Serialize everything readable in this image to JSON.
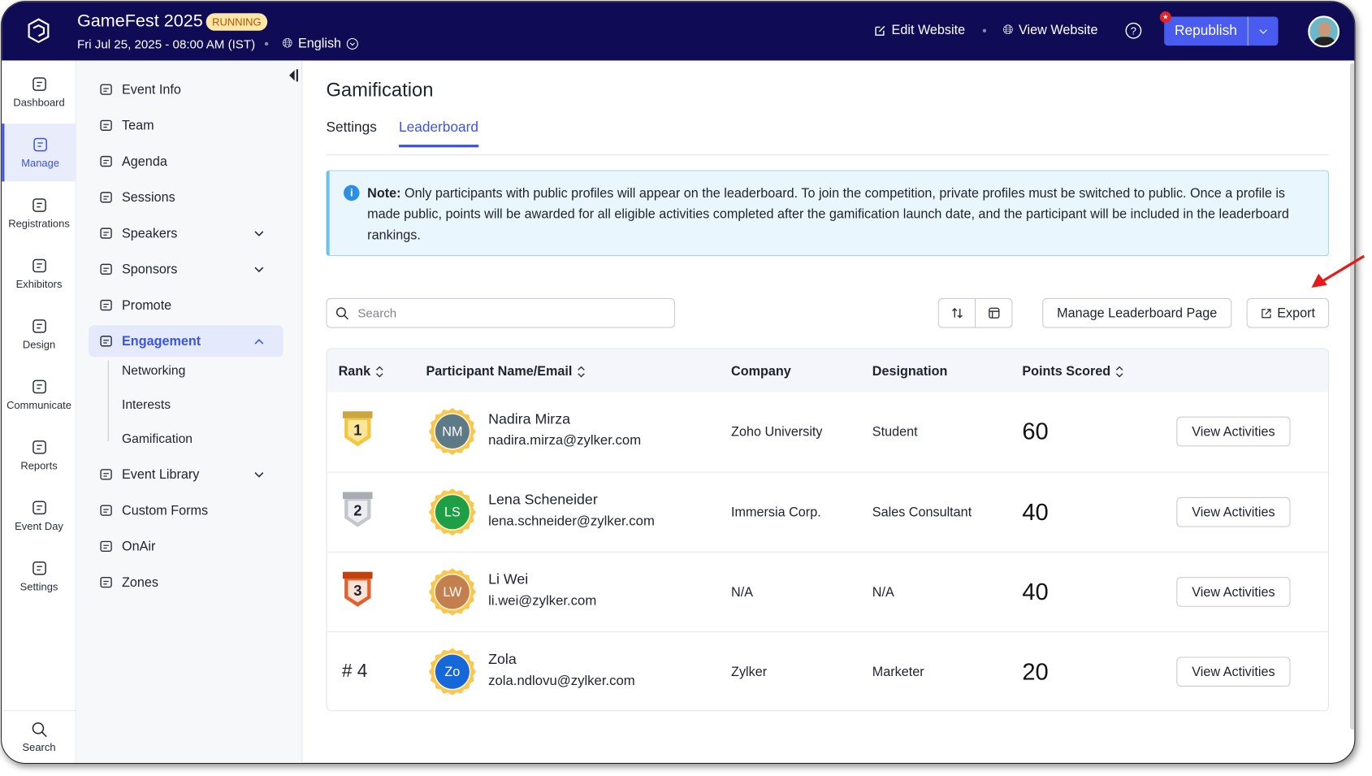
{
  "header": {
    "event_title": "GameFest 2025",
    "status_badge": "RUNNING",
    "datetime": "Fri Jul 25, 2025 - 08:00 AM (IST)",
    "language": "English",
    "edit_website": "Edit Website",
    "view_website": "View Website",
    "republish": "Republish"
  },
  "rail": [
    {
      "label": "Dashboard",
      "icon": "dashboard-icon"
    },
    {
      "label": "Manage",
      "icon": "calendar-gear-icon",
      "active": true
    },
    {
      "label": "Registrations",
      "icon": "clipboard-icon"
    },
    {
      "label": "Exhibitors",
      "icon": "booth-icon"
    },
    {
      "label": "Design",
      "icon": "design-icon"
    },
    {
      "label": "Communicate",
      "icon": "mail-icon"
    },
    {
      "label": "Reports",
      "icon": "pie-chart-icon"
    },
    {
      "label": "Event Day",
      "icon": "calendar-check-icon"
    },
    {
      "label": "Settings",
      "icon": "gear-icon"
    }
  ],
  "rail_search": "Search",
  "sidebar": {
    "items": [
      {
        "label": "Event Info"
      },
      {
        "label": "Team"
      },
      {
        "label": "Agenda"
      },
      {
        "label": "Sessions"
      },
      {
        "label": "Speakers",
        "expandable": true
      },
      {
        "label": "Sponsors",
        "expandable": true
      },
      {
        "label": "Promote"
      },
      {
        "label": "Engagement",
        "expandable": true,
        "active": true
      }
    ],
    "sub_items": [
      "Networking",
      "Interests",
      "Gamification"
    ],
    "items_after": [
      {
        "label": "Event Library",
        "expandable": true
      },
      {
        "label": "Custom Forms"
      },
      {
        "label": "OnAir"
      },
      {
        "label": "Zones"
      }
    ]
  },
  "main": {
    "title": "Gamification",
    "tabs": [
      {
        "label": "Settings"
      },
      {
        "label": "Leaderboard",
        "active": true
      }
    ],
    "note_label": "Note:",
    "note_text": " Only participants with public profiles will appear on the leaderboard. To join the competition, private profiles must be switched to public. Once a profile is made public, points will be awarded for all eligible activities completed after the gamification launch date, and the participant will be included in the leaderboard rankings.",
    "search_placeholder": "Search",
    "manage_button": "Manage Leaderboard Page",
    "export_button": "Export"
  },
  "table": {
    "columns": [
      "Rank",
      "Participant Name/Email",
      "Company",
      "Designation",
      "Points Scored"
    ],
    "action_label": "View Activities",
    "rows": [
      {
        "rank": "1",
        "initials": "NM",
        "avatar_color": "#5f7a87",
        "name": "Nadira Mirza",
        "email": "nadira.mirza@zylker.com",
        "company": "Zoho University",
        "designation": "Student",
        "points": "60"
      },
      {
        "rank": "2",
        "initials": "LS",
        "avatar_color": "#1e9e45",
        "name": "Lena Scheneider",
        "email": "lena.schneider@zylker.com",
        "company": "Immersia Corp.",
        "designation": "Sales Consultant",
        "points": "40"
      },
      {
        "rank": "3",
        "initials": "LW",
        "avatar_color": "#c47f4f",
        "name": "Li Wei",
        "email": "li.wei@zylker.com",
        "company": "N/A",
        "designation": "N/A",
        "points": "40"
      },
      {
        "rank": "# 4",
        "initials": "Zo",
        "avatar_color": "#1667d9",
        "name": "Zola",
        "email": "zola.ndlovu@zylker.com",
        "company": "Zylker",
        "designation": "Marketer",
        "points": "20"
      }
    ]
  },
  "colors": {
    "header": "#0f0c55",
    "accent": "#3b55e0",
    "republish": "#4a5cf0",
    "badge_bg": "#fde7a6",
    "badge_text": "#b45309",
    "gold": "#f5c542",
    "silver": "#c3c6cc",
    "bronze": "#d9572a"
  }
}
